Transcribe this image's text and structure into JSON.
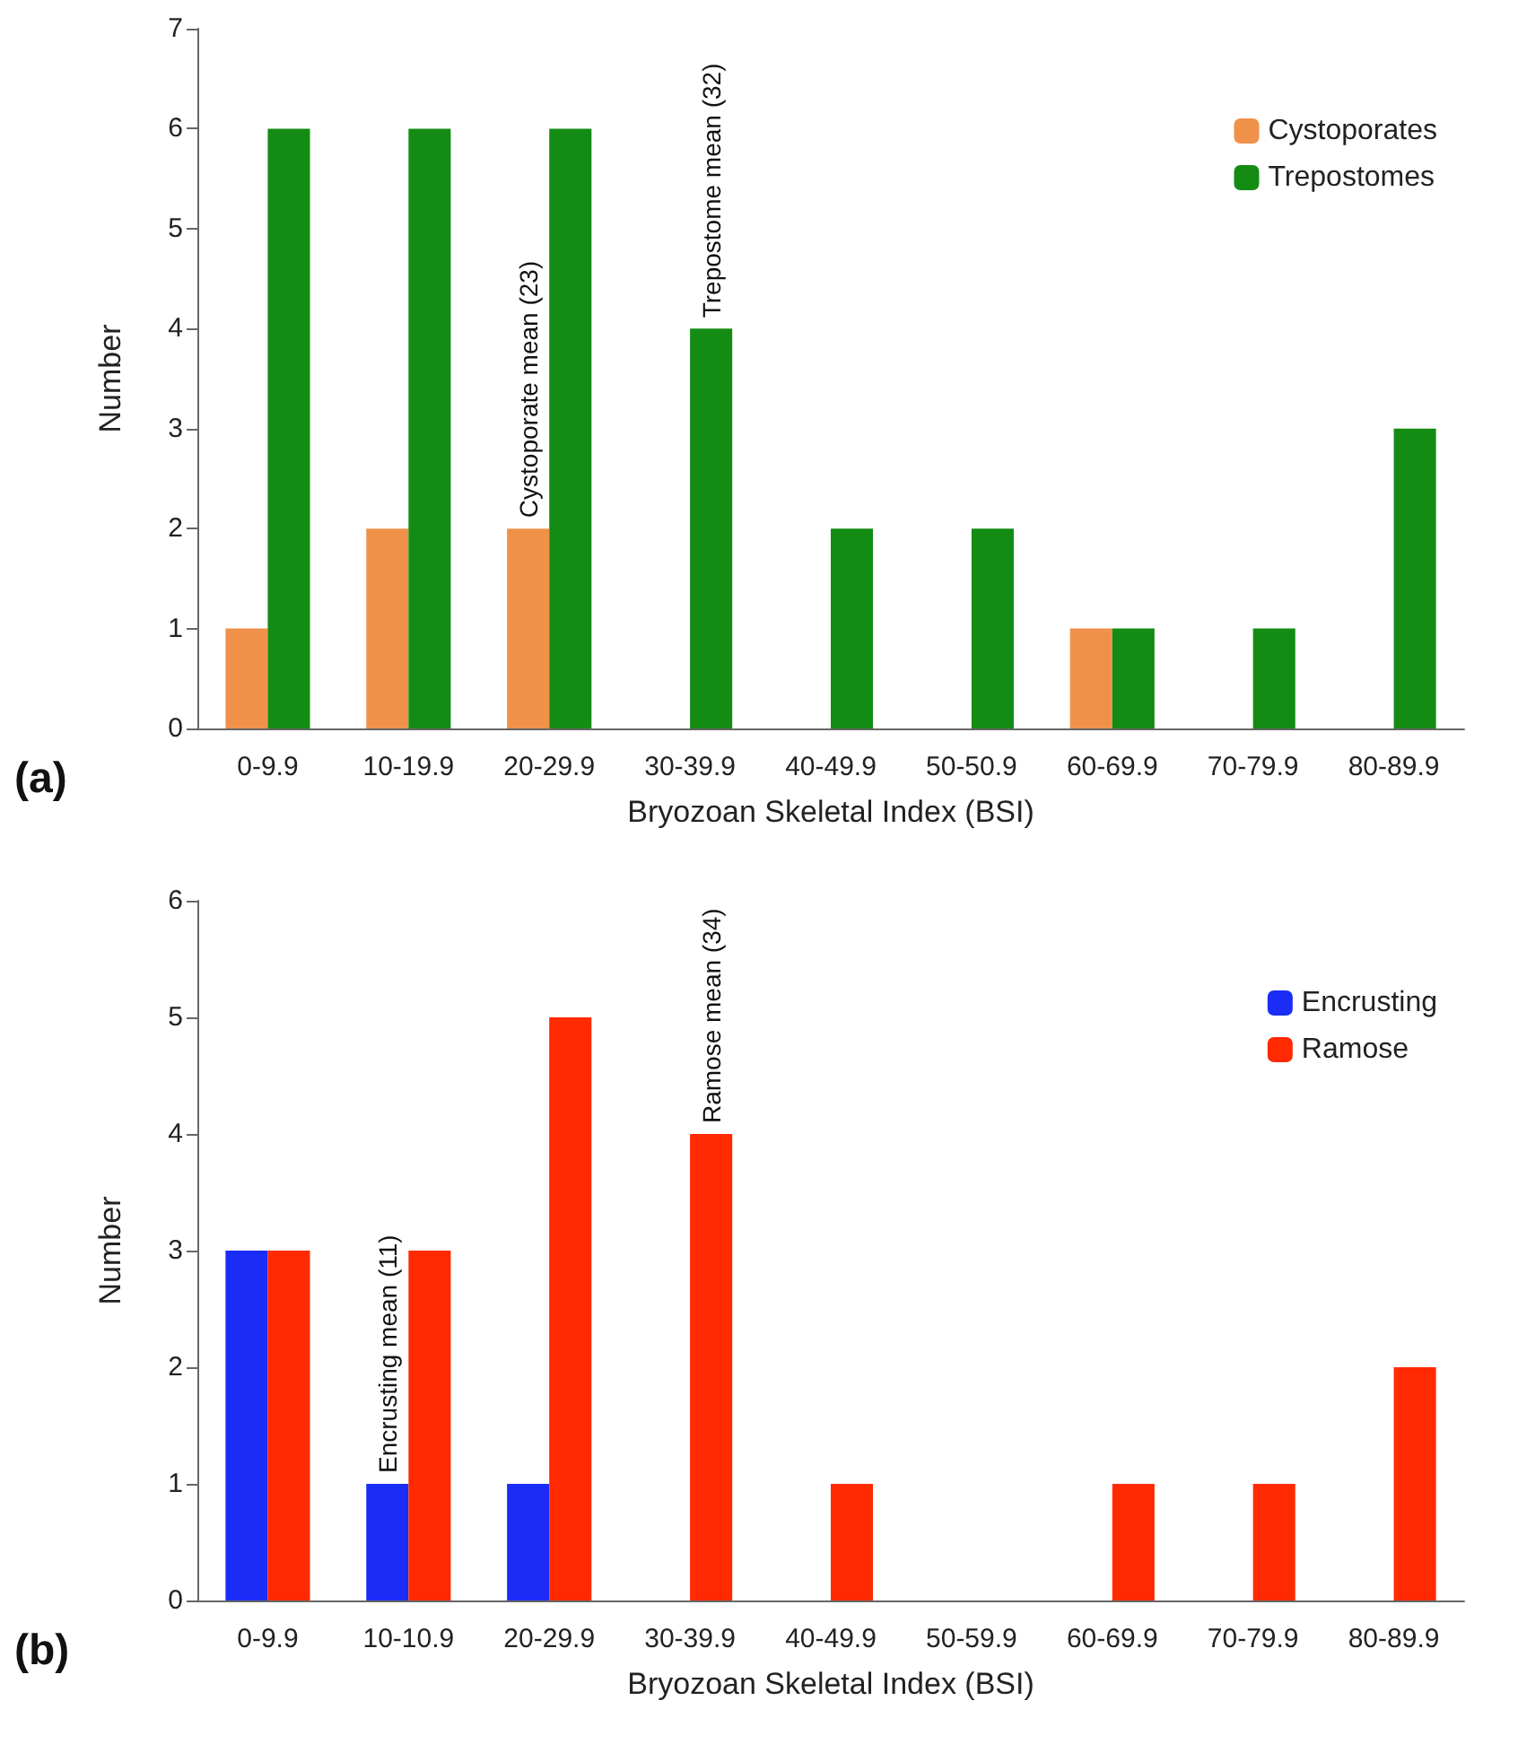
{
  "chart_data": [
    {
      "type": "bar",
      "xlabel": "Bryozoan Skeletal Index (BSI)",
      "ylabel": "Number",
      "categories": [
        "0-9.9",
        "10-19.9",
        "20-29.9",
        "30-39.9",
        "40-49.9",
        "50-50.9",
        "60-69.9",
        "70-79.9",
        "80-89.9"
      ],
      "series": [
        {
          "name": "Cystoporates",
          "color": "#f0914a",
          "values": [
            1,
            2,
            2,
            0,
            0,
            0,
            1,
            0,
            0
          ]
        },
        {
          "name": "Trepostomes",
          "color": "#148c14",
          "values": [
            6,
            6,
            6,
            4,
            2,
            2,
            1,
            1,
            3
          ]
        }
      ],
      "ylim": [
        0,
        7
      ],
      "yticks": [
        0,
        1,
        2,
        3,
        4,
        5,
        6,
        7
      ],
      "grid": false,
      "legend": "top right",
      "annotations": [
        "(a)",
        {
          "text": "Cystoporate mean (23)",
          "x": "20-29.9",
          "y": 2
        },
        {
          "text": "Trepostome mean (32)",
          "x": "30-39.9",
          "y": 4
        }
      ]
    },
    {
      "type": "bar",
      "xlabel": "Bryozoan Skeletal Index (BSI)",
      "ylabel": "Number",
      "categories": [
        "0-9.9",
        "10-10.9",
        "20-29.9",
        "30-39.9",
        "40-49.9",
        "50-59.9",
        "60-69.9",
        "70-79.9",
        "80-89.9"
      ],
      "series": [
        {
          "name": "Encrusting",
          "color": "#1a2cf5",
          "values": [
            3,
            1,
            1,
            0,
            0,
            0,
            0,
            0,
            0
          ]
        },
        {
          "name": "Ramose",
          "color": "#ff2a00",
          "values": [
            3,
            3,
            5,
            4,
            1,
            0,
            1,
            1,
            2
          ]
        }
      ],
      "ylim": [
        0,
        6
      ],
      "yticks": [
        0,
        1,
        2,
        3,
        4,
        5,
        6
      ],
      "grid": false,
      "legend": "top right",
      "annotations": [
        "(b)",
        {
          "text": "Encrusting mean (11)",
          "x": "10-10.9",
          "y": 1
        },
        {
          "text": "Ramose mean (34)",
          "x": "30-39.9",
          "y": 4
        }
      ]
    }
  ]
}
